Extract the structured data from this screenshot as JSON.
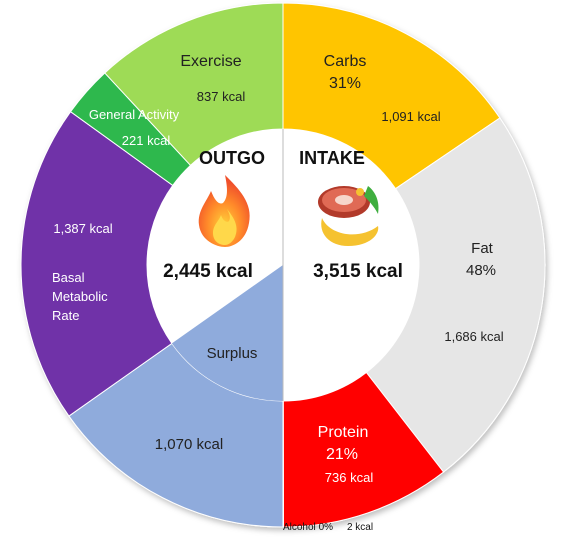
{
  "chart_data": {
    "type": "pie",
    "colors": {
      "exercise": "#9edb57",
      "general_activity": "#2db84d",
      "bmr": "#7033a8",
      "surplus": "#8fabdc",
      "carbs": "#ffc505",
      "fat": "#e6e6e6",
      "protein": "#ff0000",
      "alcohol": "#c0c0c0"
    },
    "outgo": {
      "header": "OUTGO",
      "total": "2,445 kcal",
      "slices": [
        {
          "key": "exercise",
          "name": "Exercise",
          "value": 837,
          "label": "837 kcal"
        },
        {
          "key": "general_activity",
          "name": "General Activity",
          "value": 221,
          "label": "221 kcal"
        },
        {
          "key": "bmr",
          "name": "Basal Metabolic Rate",
          "name_lines": [
            "Basal",
            "Metabolic",
            "Rate"
          ],
          "value": 1387,
          "label": "1,387 kcal"
        },
        {
          "key": "surplus",
          "name": "Surplus",
          "value": 1070,
          "label": "1,070 kcal"
        }
      ]
    },
    "intake": {
      "header": "INTAKE",
      "total": "3,515 kcal",
      "slices": [
        {
          "key": "carbs",
          "name": "Carbs",
          "percent": "31%",
          "value": 1091,
          "label": "1,091 kcal"
        },
        {
          "key": "fat",
          "name": "Fat",
          "percent": "48%",
          "value": 1686,
          "label": "1,686 kcal"
        },
        {
          "key": "protein",
          "name": "Protein",
          "percent": "21%",
          "value": 736,
          "label": "736 kcal"
        },
        {
          "key": "alcohol",
          "name": "Alcohol",
          "percent": "0%",
          "value": 2,
          "label": "2 kcal"
        }
      ]
    },
    "icons": {
      "outgo": "fire-icon",
      "intake": "food-icon"
    }
  }
}
